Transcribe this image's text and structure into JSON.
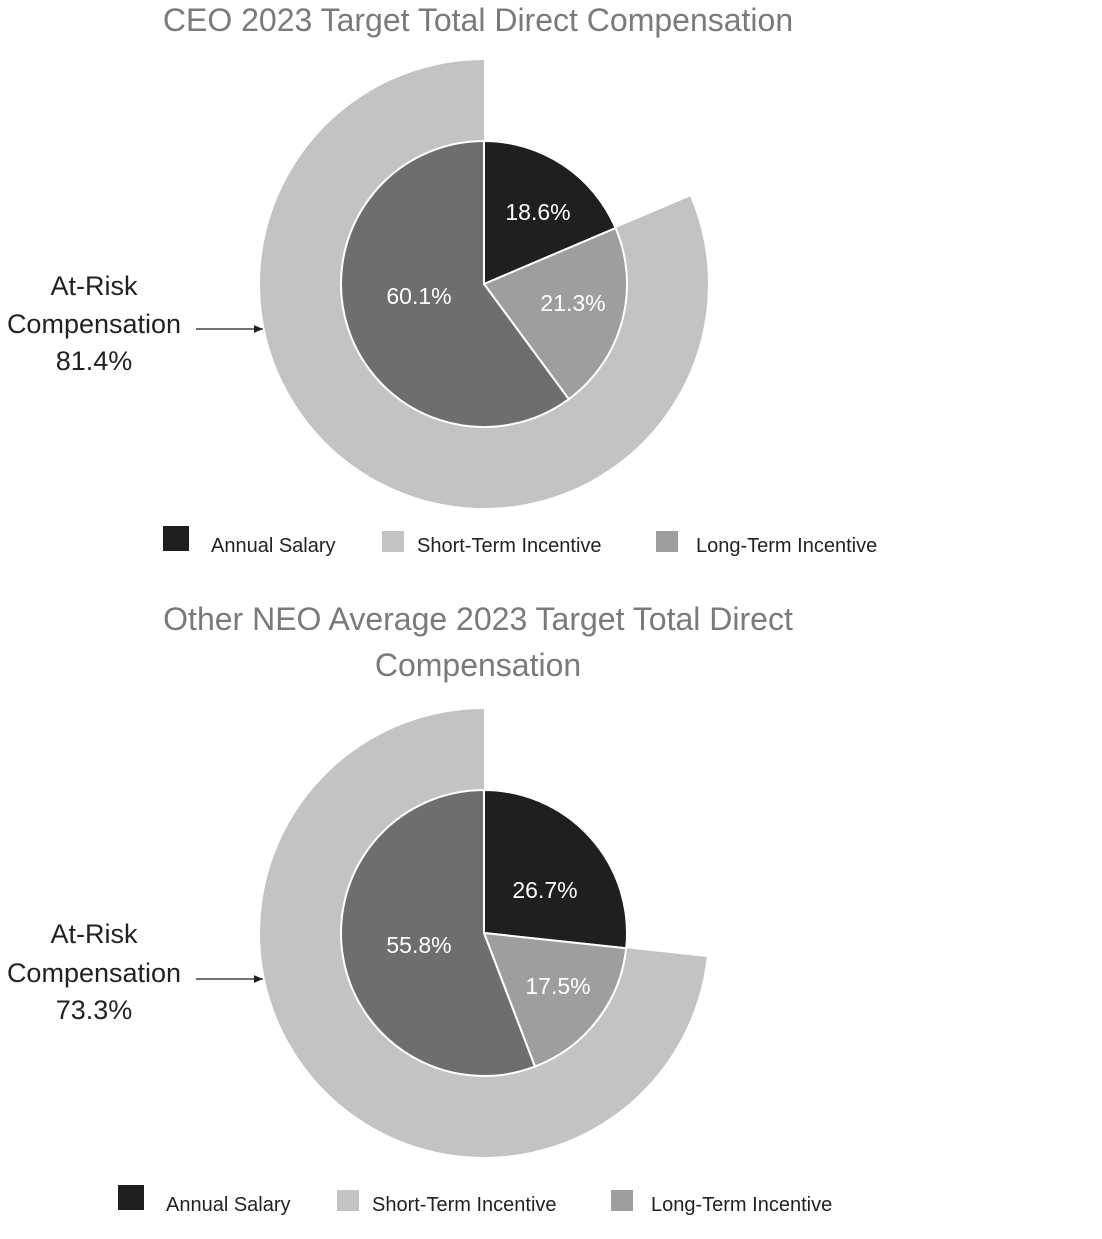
{
  "colors": {
    "annual_salary": "#1f1f1f",
    "short_term_incentive": "#c2c3c2",
    "long_term_incentive": "#9e9e9e",
    "inner_long_term": "#6e6e6e",
    "title": "#7a7a7a"
  },
  "chart_data": [
    {
      "type": "pie",
      "title": "CEO 2023 Target Total Direct Compensation",
      "inner_slices": [
        {
          "label": "18.6%",
          "value": 18.6
        },
        {
          "label": "21.3%",
          "value": 21.3
        },
        {
          "label": "60.1%",
          "value": 60.1
        }
      ],
      "outer_ring": {
        "value": 81.4
      },
      "callout": {
        "line1": "At-Risk",
        "line2": "Compensation",
        "value": "81.4%"
      },
      "legend": [
        "Annual Salary",
        "Short-Term Incentive",
        "Long-Term Incentive"
      ]
    },
    {
      "type": "pie",
      "title": "Other NEO Average 2023 Target Total Direct Compensation",
      "title_lines": [
        "Other NEO Average 2023 Target Total Direct",
        "Compensation"
      ],
      "inner_slices": [
        {
          "label": "26.7%",
          "value": 26.7
        },
        {
          "label": "17.5%",
          "value": 17.5
        },
        {
          "label": "55.8%",
          "value": 55.8
        }
      ],
      "outer_ring": {
        "value": 73.3
      },
      "callout": {
        "line1": "At-Risk",
        "line2": "Compensation",
        "value": "73.3%"
      },
      "legend": [
        "Annual Salary",
        "Short-Term Incentive",
        "Long-Term Incentive"
      ]
    }
  ]
}
